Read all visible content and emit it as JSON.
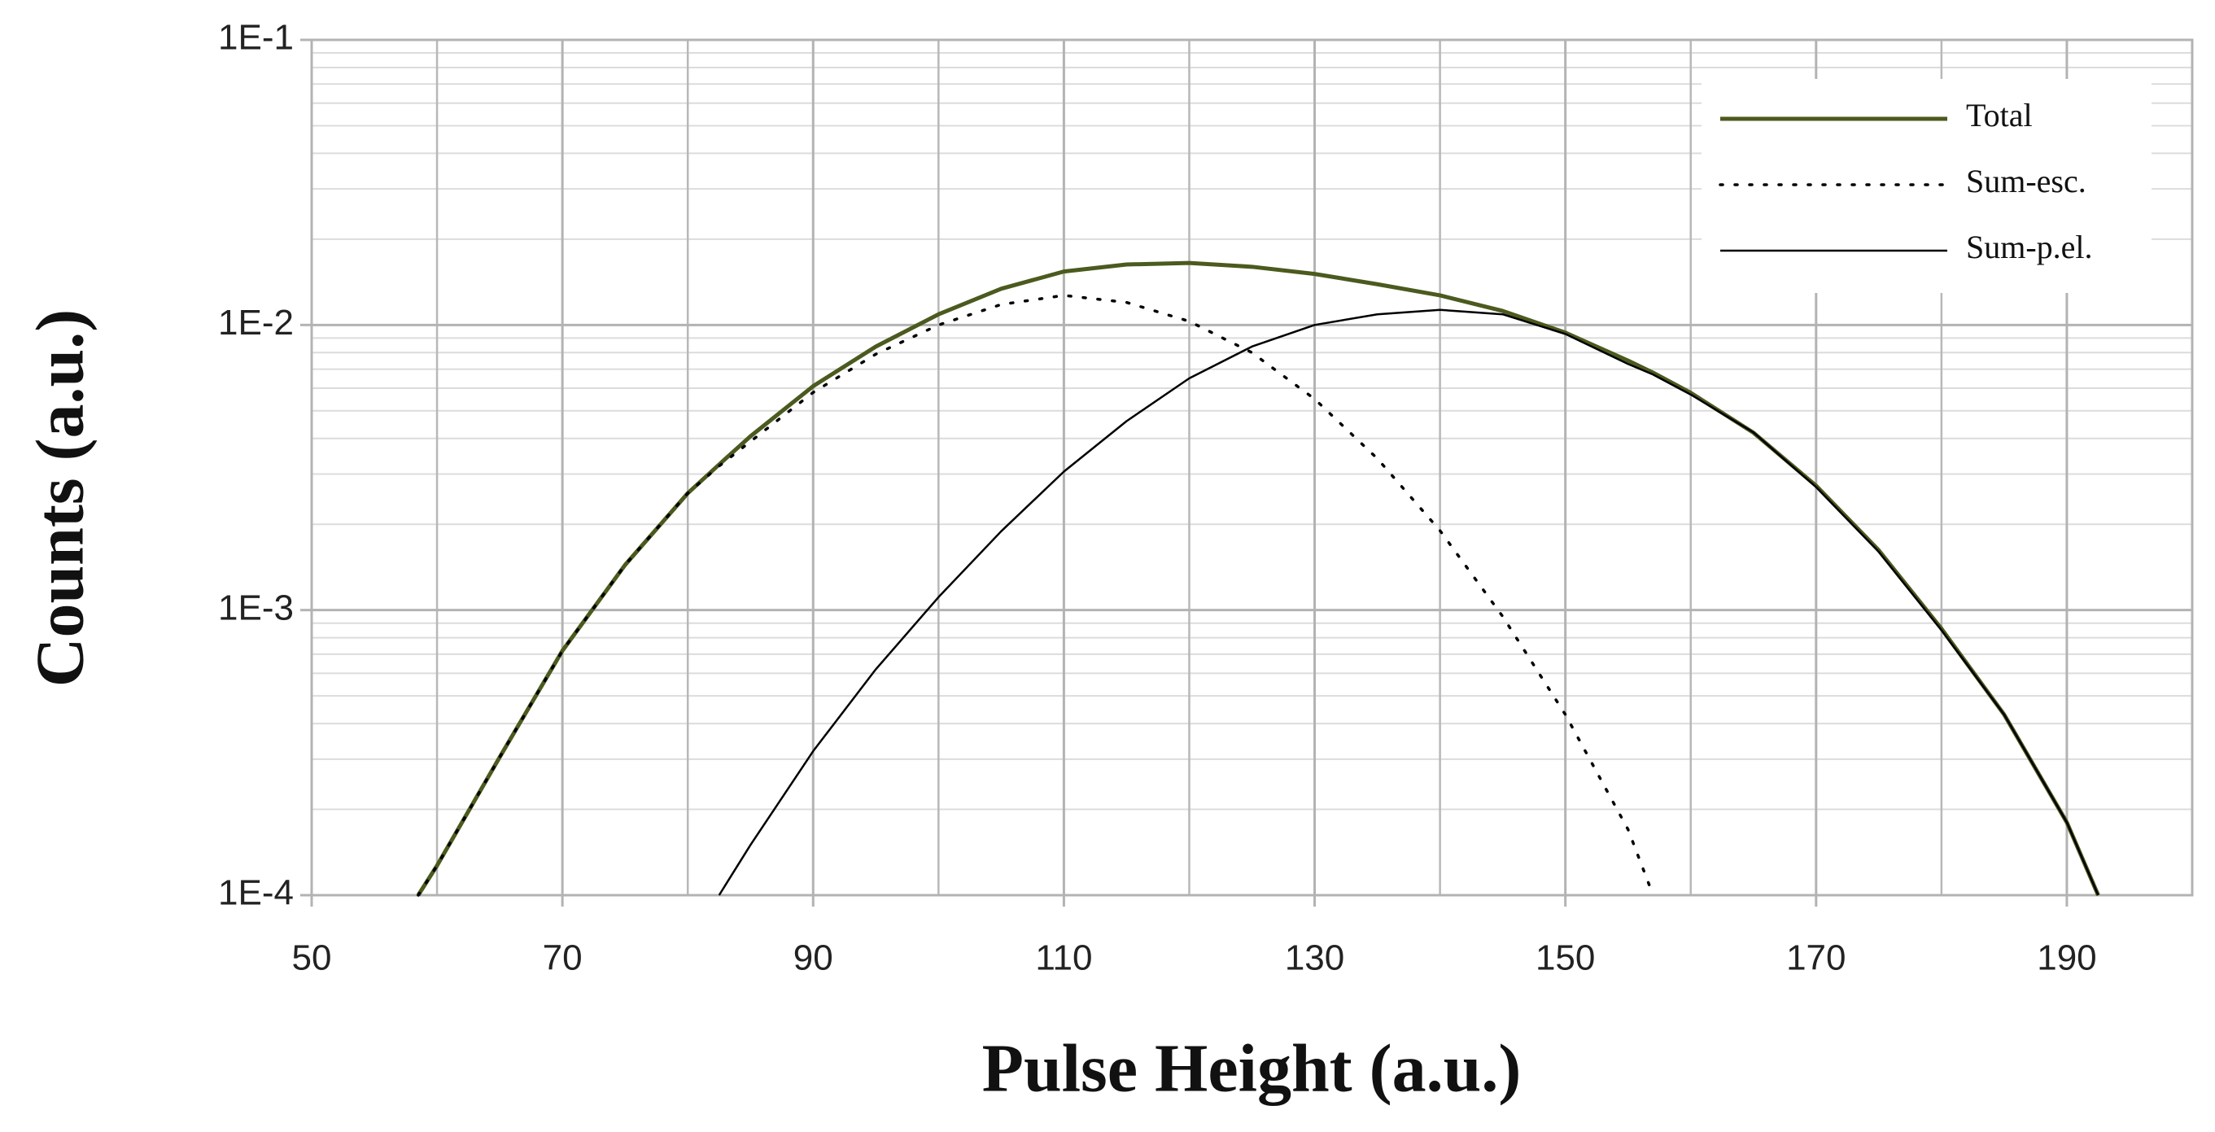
{
  "chart_data": {
    "type": "line",
    "xlabel": "Pulse Height (a.u.)",
    "ylabel": "Counts (a.u.)",
    "x": [
      58.5,
      60,
      65,
      70,
      75,
      80,
      82.5,
      85,
      90,
      95,
      100,
      105,
      110,
      115,
      120,
      125,
      130,
      135,
      140,
      145,
      150,
      155,
      157,
      160,
      165,
      170,
      175,
      180,
      185,
      190,
      192.5
    ],
    "series": [
      {
        "name": "Total",
        "color": "#4b5a1e",
        "style": "solid",
        "width": 5,
        "values": [
          0.0001,
          0.000127,
          0.000305,
          0.00072,
          0.00144,
          0.00257,
          0.00324,
          0.00407,
          0.0061,
          0.0084,
          0.0109,
          0.0134,
          0.0154,
          0.0163,
          0.0165,
          0.016,
          0.0151,
          0.0139,
          0.0127,
          0.0112,
          0.0094,
          0.0075,
          0.0068,
          0.00578,
          0.00419,
          0.00273,
          0.00162,
          0.00086,
          0.00043,
          0.00018,
          0.0001
        ]
      },
      {
        "name": "Sum-esc.",
        "color": "#000000",
        "style": "dotted",
        "width": 3.5,
        "values": [
          0.0001,
          0.000127,
          0.000305,
          0.00072,
          0.00144,
          0.00257,
          0.0032,
          0.0039,
          0.0058,
          0.0079,
          0.01,
          0.0118,
          0.0127,
          0.012,
          0.0103,
          0.008,
          0.0055,
          0.0034,
          0.0019,
          0.00095,
          0.00043,
          0.00017,
          0.0001,
          null,
          null,
          null,
          null,
          null,
          null,
          null,
          null
        ]
      },
      {
        "name": "Sum-p.el.",
        "color": "#000000",
        "style": "solid",
        "width": 2.5,
        "values": [
          null,
          null,
          null,
          null,
          null,
          null,
          0.0001,
          0.00015,
          0.00032,
          0.00062,
          0.00111,
          0.00189,
          0.00306,
          0.0046,
          0.0065,
          0.0084,
          0.01,
          0.0109,
          0.0113,
          0.0109,
          0.0093,
          0.0073,
          0.0067,
          0.0057,
          0.0042,
          0.0027,
          0.0016,
          0.00085,
          0.00043,
          0.00018,
          0.0001
        ]
      }
    ],
    "xlim": [
      50,
      200
    ],
    "xticks": [
      50,
      70,
      90,
      110,
      130,
      150,
      170,
      190
    ],
    "xminorticks": [
      60,
      80,
      100,
      120,
      140,
      160,
      180,
      200
    ],
    "ylim": [
      0.0001,
      0.1
    ],
    "yscale": "log",
    "yticks": [
      {
        "value": 0.0001,
        "label": "1E-4"
      },
      {
        "value": 0.001,
        "label": "1E-3"
      },
      {
        "value": 0.01,
        "label": "1E-2"
      },
      {
        "value": 0.1,
        "label": "1E-1"
      }
    ],
    "yminorticks": [
      0.0002,
      0.0003,
      0.0004,
      0.0005,
      0.0006,
      0.0007,
      0.0008,
      0.0009,
      0.002,
      0.003,
      0.004,
      0.005,
      0.006,
      0.007,
      0.008,
      0.009,
      0.02,
      0.03,
      0.04,
      0.05,
      0.06,
      0.07,
      0.08,
      0.09
    ],
    "grid": true,
    "legend": "upper right"
  }
}
